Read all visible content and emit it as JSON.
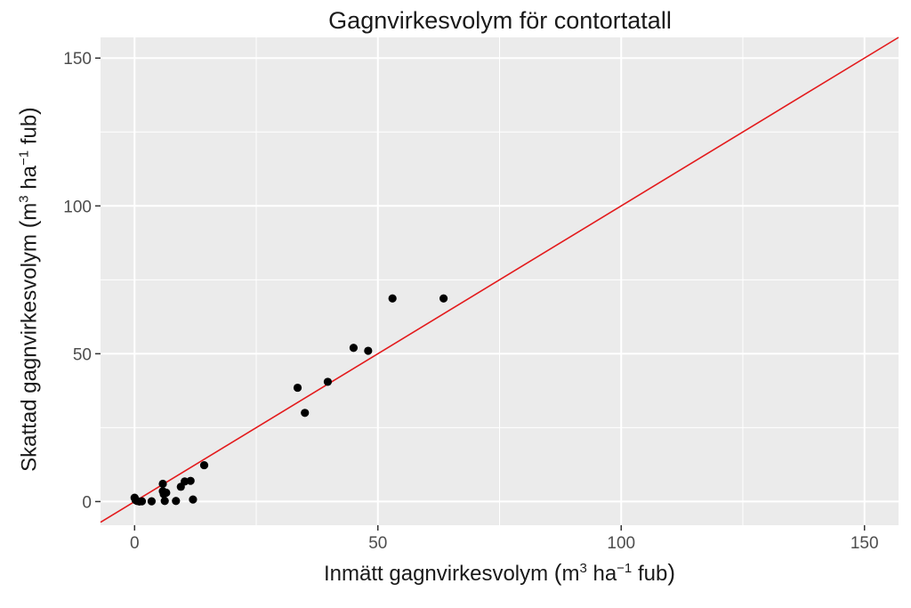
{
  "chart_data": {
    "type": "scatter",
    "title": "Gagnvirkesvolym för contortatall",
    "xlabel": {
      "pre": "Inmätt gagnvirkesvolym ",
      "open": "(",
      "m": "m",
      "sup1": "3",
      "ha": " ha",
      "sup2": "−1",
      "post": " fub",
      "close": ")"
    },
    "ylabel": {
      "pre": "Skattad gagnvirkesvolym ",
      "open": "(",
      "m": "m",
      "sup1": "3",
      "ha": " ha",
      "sup2": "−1",
      "post": " fub",
      "close": ")"
    },
    "xlim": [
      -7,
      157
    ],
    "ylim": [
      -8,
      157
    ],
    "x_ticks": [
      0,
      50,
      100,
      150
    ],
    "y_ticks": [
      0,
      50,
      100,
      150
    ],
    "grid": true,
    "background": "#ebebeb",
    "grid_color": "#ffffff",
    "point_color": "#000000",
    "reference_line": {
      "type": "y=x",
      "color": "#e31a1c"
    },
    "points": [
      {
        "x": 0.0,
        "y": 1.3
      },
      {
        "x": 0.2,
        "y": 0.5
      },
      {
        "x": 0.5,
        "y": 0.2
      },
      {
        "x": 1.0,
        "y": 0.0
      },
      {
        "x": 1.5,
        "y": 0.1
      },
      {
        "x": 3.5,
        "y": 0.1
      },
      {
        "x": 5.8,
        "y": 6.0
      },
      {
        "x": 5.8,
        "y": 3.5
      },
      {
        "x": 6.0,
        "y": 2.5
      },
      {
        "x": 6.2,
        "y": 0.2
      },
      {
        "x": 6.5,
        "y": 3.0
      },
      {
        "x": 8.5,
        "y": 0.2
      },
      {
        "x": 9.5,
        "y": 5.0
      },
      {
        "x": 10.3,
        "y": 6.8
      },
      {
        "x": 11.5,
        "y": 7.0
      },
      {
        "x": 12.0,
        "y": 0.7
      },
      {
        "x": 14.3,
        "y": 12.3
      },
      {
        "x": 33.5,
        "y": 38.5
      },
      {
        "x": 35.0,
        "y": 30.0
      },
      {
        "x": 39.7,
        "y": 40.5
      },
      {
        "x": 45.0,
        "y": 52.0
      },
      {
        "x": 48.0,
        "y": 51.0
      },
      {
        "x": 53.0,
        "y": 68.7
      },
      {
        "x": 63.5,
        "y": 68.7
      }
    ]
  }
}
